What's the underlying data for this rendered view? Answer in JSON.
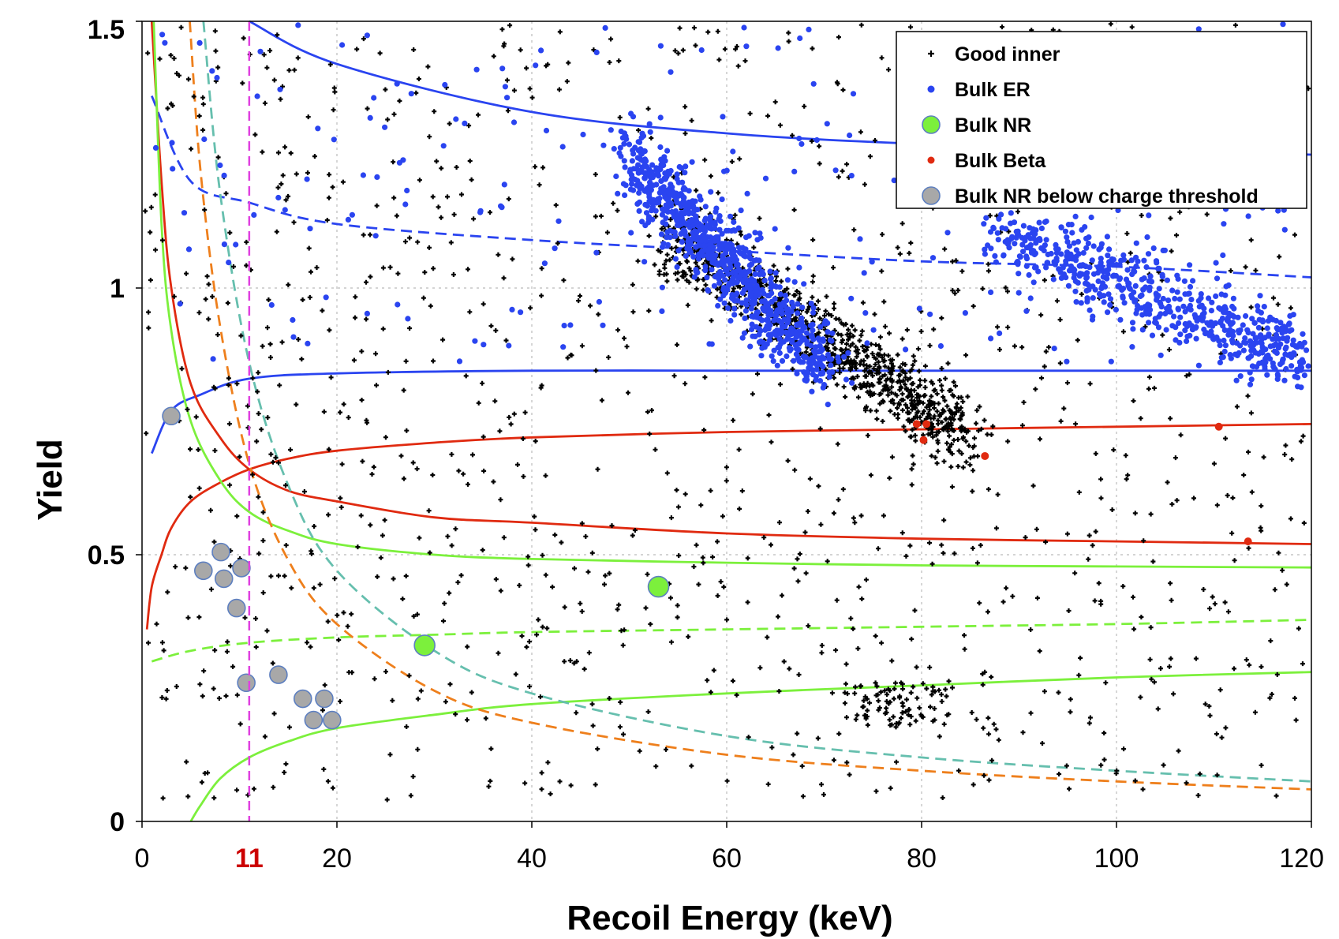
{
  "chart_data": {
    "type": "scatter",
    "xlabel": "Recoil Energy (keV)",
    "ylabel": "Yield",
    "xlim": [
      0,
      120
    ],
    "ylim": [
      0,
      1.5
    ],
    "x_ticks": [
      {
        "value": 0,
        "label": "0"
      },
      {
        "value": 20,
        "label": "20"
      },
      {
        "value": 40,
        "label": "40"
      },
      {
        "value": 60,
        "label": "60"
      },
      {
        "value": 80,
        "label": "80"
      },
      {
        "value": 100,
        "label": "100"
      },
      {
        "value": 120,
        "label": "120"
      }
    ],
    "y_ticks": [
      {
        "value": 0,
        "label": "0"
      },
      {
        "value": 0.5,
        "label": "0.5"
      },
      {
        "value": 1,
        "label": "1"
      },
      {
        "value": 1.5,
        "label": "1.5"
      }
    ],
    "grid": true,
    "threshold_marker": {
      "x": 11,
      "label": "11",
      "color": "#cc0000",
      "line_color": "#e040e0"
    },
    "legend": {
      "position": "top-right",
      "entries": [
        {
          "key": "good_inner",
          "label": "Good inner",
          "color": "#000000",
          "marker": "plus"
        },
        {
          "key": "bulk_er",
          "label": "Bulk ER",
          "color": "#2a44f0",
          "marker": "star"
        },
        {
          "key": "bulk_nr",
          "label": "Bulk NR",
          "color": "#7cf03c",
          "marker": "circle"
        },
        {
          "key": "bulk_beta",
          "label": "Bulk Beta",
          "color": "#e02a10",
          "marker": "dot"
        },
        {
          "key": "bulk_nr_below",
          "label": "Bulk NR below charge threshold",
          "color": "#a8a8a8",
          "marker": "circle"
        }
      ]
    },
    "series": [
      {
        "name": "Bulk NR",
        "points": [
          [
            29,
            0.33
          ],
          [
            53,
            0.44
          ]
        ]
      },
      {
        "name": "Bulk NR below charge threshold",
        "points": [
          [
            6.3,
            0.47
          ],
          [
            8.1,
            0.505
          ],
          [
            8.4,
            0.455
          ],
          [
            10.2,
            0.475
          ],
          [
            9.7,
            0.4
          ],
          [
            10.7,
            0.26
          ],
          [
            14,
            0.275
          ],
          [
            16.5,
            0.23
          ],
          [
            18.7,
            0.23
          ],
          [
            17.6,
            0.19
          ],
          [
            19.5,
            0.19
          ],
          [
            3.0,
            0.76
          ]
        ]
      },
      {
        "name": "Bulk Beta",
        "points": [
          [
            79.5,
            0.745
          ],
          [
            80.5,
            0.745
          ],
          [
            80.2,
            0.715
          ],
          [
            86.5,
            0.685
          ],
          [
            110.5,
            0.74
          ],
          [
            113.5,
            0.525
          ]
        ]
      },
      {
        "name": "Bulk ER",
        "clusters": [
          {
            "x_range": [
              50,
              70
            ],
            "y_start": 1.25,
            "y_end": 0.85,
            "count": 850
          },
          {
            "x_range": [
              88,
              120
            ],
            "y_start": 1.1,
            "y_end": 0.86,
            "count": 620
          },
          {
            "x_range": [
              1,
              120
            ],
            "y_range": [
              0.85,
              1.5
            ],
            "count": 240
          }
        ]
      },
      {
        "name": "Good inner",
        "clusters": [
          {
            "x_range": [
              54,
              85
            ],
            "y_start": 1.1,
            "y_end": 0.72,
            "count": 950
          },
          {
            "x_range": [
              0,
              120
            ],
            "y_range": [
              0.04,
              1.5
            ],
            "count": 1200
          },
          {
            "x_range": [
              72,
              83
            ],
            "y_range": [
              0.18,
              0.26
            ],
            "count": 90
          }
        ]
      }
    ],
    "bands": [
      {
        "name": "ER band upper",
        "color": "#2a44f0",
        "style": "solid",
        "x": [
          11,
          20,
          40,
          60,
          80,
          100,
          120
        ],
        "y": [
          1.52,
          1.42,
          1.33,
          1.29,
          1.27,
          1.26,
          1.25
        ]
      },
      {
        "name": "ER band center",
        "color": "#2a44f0",
        "style": "dashed",
        "x": [
          1,
          5,
          11,
          20,
          40,
          60,
          80,
          100,
          120
        ],
        "y": [
          1.36,
          1.2,
          1.16,
          1.12,
          1.09,
          1.07,
          1.05,
          1.04,
          1.02
        ]
      },
      {
        "name": "ER band lower",
        "color": "#2a44f0",
        "style": "solid",
        "x": [
          1,
          3,
          6,
          11,
          20,
          40,
          60,
          80,
          100,
          120
        ],
        "y": [
          0.69,
          0.77,
          0.8,
          0.83,
          0.84,
          0.845,
          0.845,
          0.845,
          0.845,
          0.845
        ]
      },
      {
        "name": "Beta band upper",
        "color": "#e02a10",
        "style": "solid",
        "x": [
          1,
          2,
          3,
          5,
          8,
          11,
          15,
          20,
          30,
          40,
          60,
          80,
          100,
          120
        ],
        "y": [
          1.5,
          1.2,
          1.0,
          0.82,
          0.72,
          0.66,
          0.62,
          0.6,
          0.57,
          0.56,
          0.54,
          0.53,
          0.525,
          0.52
        ]
      },
      {
        "name": "Beta band lower",
        "color": "#e02a10",
        "style": "solid",
        "x": [
          0.5,
          1,
          2,
          3,
          5,
          8,
          11,
          15,
          20,
          30,
          40,
          60,
          80,
          100,
          120
        ],
        "y": [
          0.36,
          0.44,
          0.5,
          0.55,
          0.6,
          0.635,
          0.66,
          0.68,
          0.695,
          0.71,
          0.72,
          0.73,
          0.735,
          0.74,
          0.745
        ]
      },
      {
        "name": "NR band upper",
        "color": "#7cf03c",
        "style": "solid",
        "x": [
          1.2,
          2,
          3,
          5,
          8,
          11,
          15,
          20,
          30,
          40,
          60,
          80,
          100,
          120
        ],
        "y": [
          1.5,
          1.12,
          0.92,
          0.75,
          0.64,
          0.58,
          0.545,
          0.52,
          0.5,
          0.492,
          0.485,
          0.48,
          0.478,
          0.476
        ]
      },
      {
        "name": "NR band center",
        "color": "#7cf03c",
        "style": "dashed",
        "x": [
          1,
          5,
          11,
          20,
          30,
          40,
          60,
          80,
          100,
          120
        ],
        "y": [
          0.3,
          0.32,
          0.335,
          0.345,
          0.35,
          0.355,
          0.36,
          0.365,
          0.37,
          0.378
        ]
      },
      {
        "name": "NR band lower",
        "color": "#7cf03c",
        "style": "solid",
        "x": [
          5,
          6,
          8,
          11,
          15,
          20,
          30,
          40,
          60,
          80,
          100,
          120
        ],
        "y": [
          0.0,
          0.03,
          0.08,
          0.12,
          0.15,
          0.175,
          0.2,
          0.22,
          0.24,
          0.255,
          0.27,
          0.28
        ]
      },
      {
        "name": "Ionization threshold",
        "color": "#ee7f1c",
        "style": "dashed",
        "x": [
          4.9,
          6,
          8,
          11,
          15,
          20,
          30,
          40,
          60,
          80,
          100,
          120
        ],
        "y": [
          1.5,
          1.22,
          0.93,
          0.67,
          0.49,
          0.37,
          0.245,
          0.185,
          0.125,
          0.095,
          0.075,
          0.06
        ]
      },
      {
        "name": "Threshold (alt)",
        "color": "#66bfae",
        "style": "dashed",
        "x": [
          6.3,
          8,
          11,
          15,
          20,
          30,
          40,
          60,
          80,
          100,
          120
        ],
        "y": [
          1.5,
          1.18,
          0.86,
          0.63,
          0.47,
          0.32,
          0.24,
          0.16,
          0.12,
          0.095,
          0.075
        ]
      }
    ]
  }
}
